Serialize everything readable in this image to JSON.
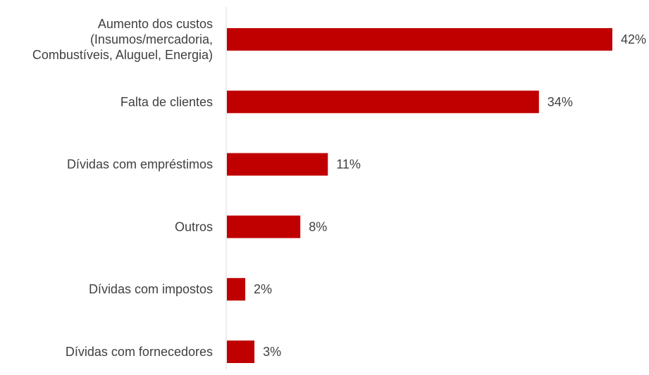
{
  "chart_data": {
    "type": "bar",
    "orientation": "horizontal",
    "categories": [
      [
        "Aumento dos custos",
        "(Insumos/mercadoria,",
        "Combustíveis, Aluguel, Energia)"
      ],
      [
        "Falta de clientes"
      ],
      [
        "Dívidas com empréstimos"
      ],
      [
        "Outros"
      ],
      [
        "Dívidas com impostos"
      ],
      [
        "Dívidas com fornecedores"
      ]
    ],
    "values": [
      42,
      34,
      11,
      8,
      2,
      3
    ],
    "value_labels": [
      "42%",
      "34%",
      "11%",
      "8%",
      "2%",
      "3%"
    ],
    "unit": "%",
    "xlim": [
      0,
      42
    ],
    "grid": false,
    "legend": "none",
    "colors": {
      "bar": "#c00000",
      "axis": "#d9d9d9",
      "text": "#404040"
    }
  }
}
